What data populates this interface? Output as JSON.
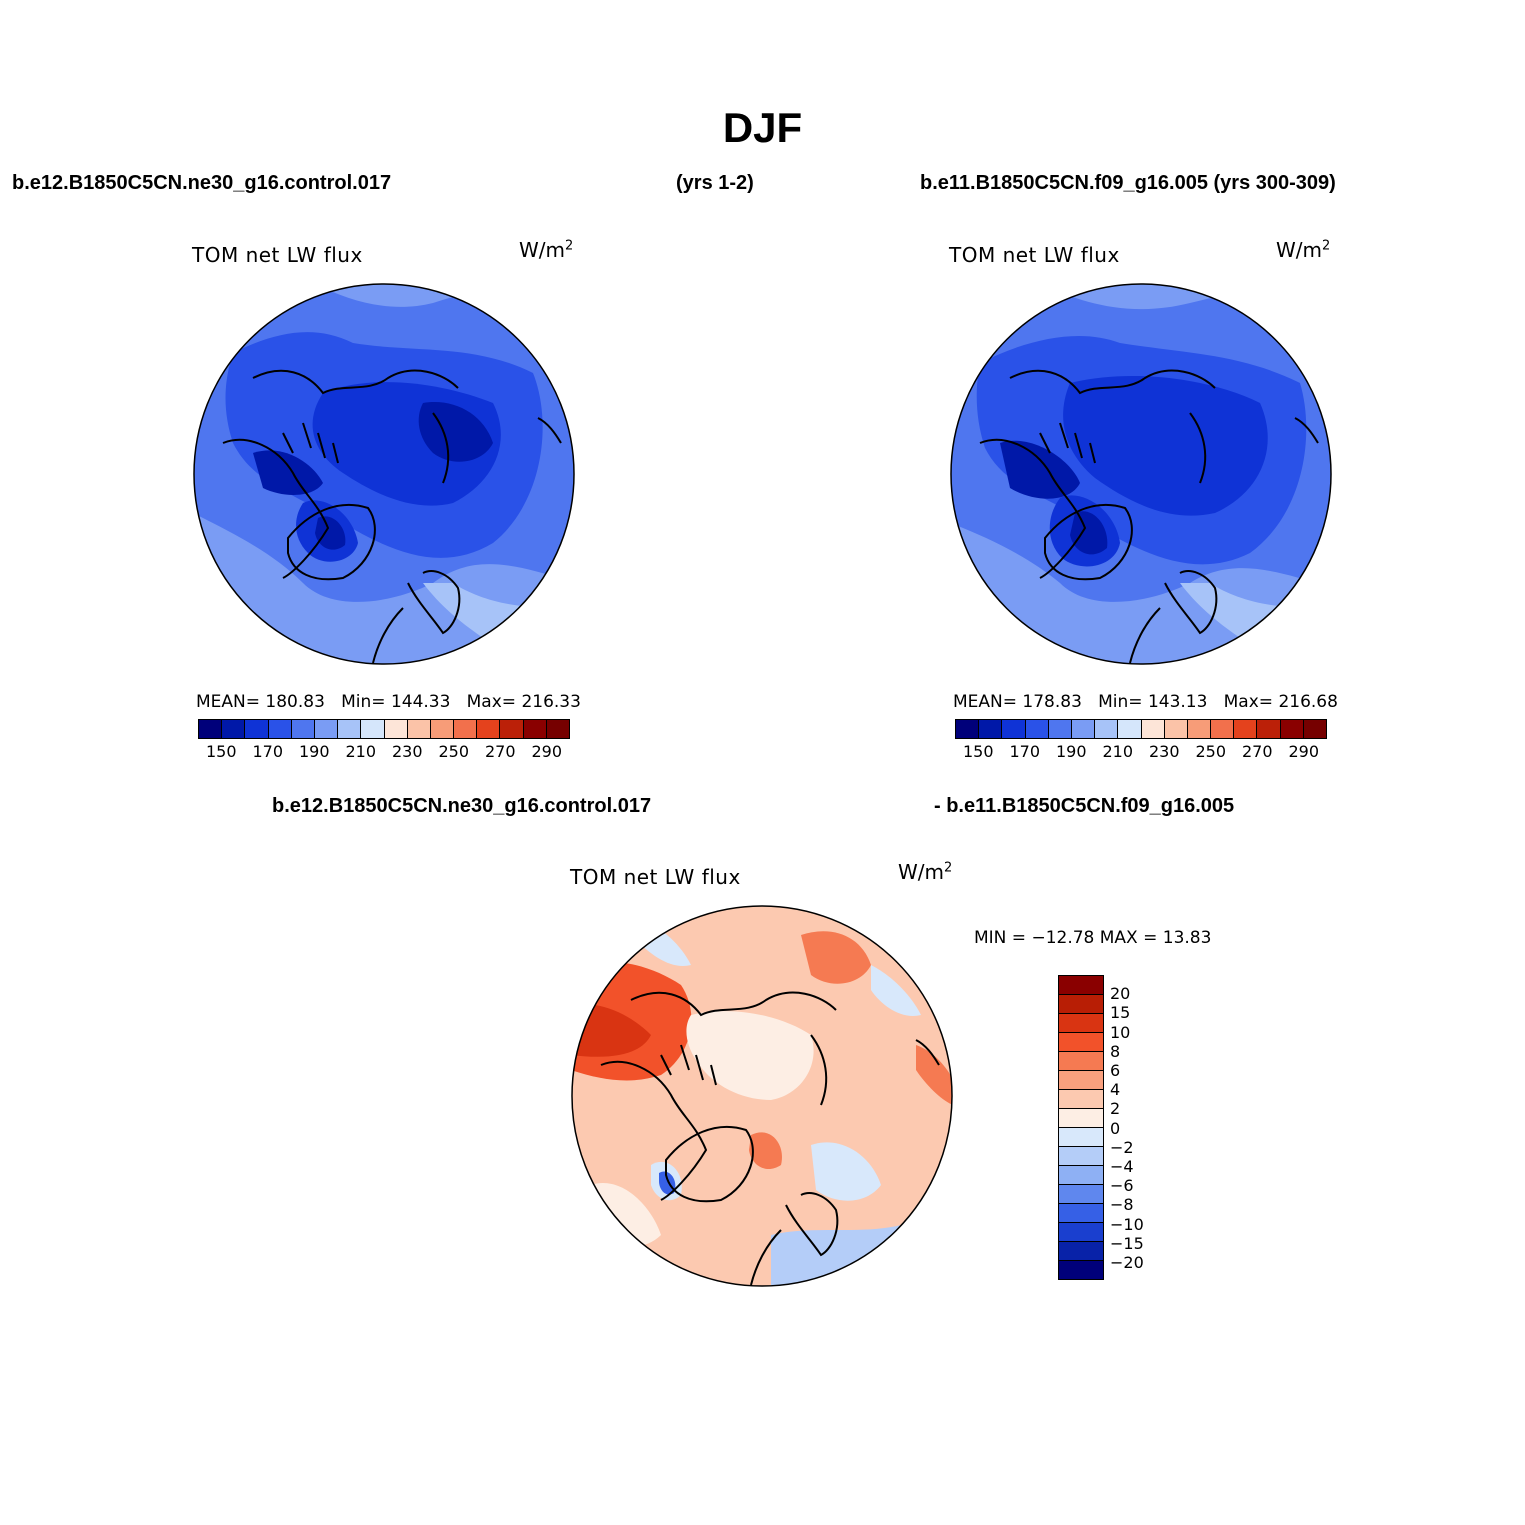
{
  "figure": {
    "title": "DJF",
    "header_left": "b.e12.B1850C5CN.ne30_g16.control.017",
    "header_mid": "(yrs 1-2)",
    "header_right": "b.e11.B1850C5CN.f09_g16.005 (yrs 300-309)",
    "diff_header_left": "b.e12.B1850C5CN.ne30_g16.control.017",
    "diff_header_right": "- b.e11.B1850C5CN.f09_g16.005"
  },
  "chart_data": [
    {
      "type": "heatmap",
      "projection": "north polar stereographic",
      "title": "TOM net LW flux",
      "units_base": "W/m",
      "units_exp": "2",
      "stats": {
        "mean_label": "MEAN=",
        "mean": "180.83",
        "min_label": "Min=",
        "min": "144.33",
        "max_label": "Max=",
        "max": "216.33"
      },
      "levels": [
        150,
        160,
        170,
        180,
        190,
        200,
        210,
        220,
        230,
        240,
        250,
        260,
        270,
        280,
        290
      ],
      "tick_labels": [
        "150",
        "170",
        "190",
        "210",
        "230",
        "250",
        "270",
        "290"
      ],
      "colors": [
        "#00007a",
        "#0018a8",
        "#0f33d6",
        "#2a52e8",
        "#4f76ef",
        "#7a9cf4",
        "#a7c3f8",
        "#d5e6fb",
        "#fde5d8",
        "#fbc3a8",
        "#f79c78",
        "#f2704c",
        "#e4421d",
        "#bb2008",
        "#8a0000",
        "#760000"
      ],
      "legend": "bottom"
    },
    {
      "type": "heatmap",
      "projection": "north polar stereographic",
      "title": "TOM net LW flux",
      "units_base": "W/m",
      "units_exp": "2",
      "stats": {
        "mean_label": "MEAN=",
        "mean": "178.83",
        "min_label": "Min=",
        "min": "143.13",
        "max_label": "Max=",
        "max": "216.68"
      },
      "levels": [
        150,
        160,
        170,
        180,
        190,
        200,
        210,
        220,
        230,
        240,
        250,
        260,
        270,
        280,
        290
      ],
      "tick_labels": [
        "150",
        "170",
        "190",
        "210",
        "230",
        "250",
        "270",
        "290"
      ],
      "colors": [
        "#00007a",
        "#0018a8",
        "#0f33d6",
        "#2a52e8",
        "#4f76ef",
        "#7a9cf4",
        "#a7c3f8",
        "#d5e6fb",
        "#fde5d8",
        "#fbc3a8",
        "#f79c78",
        "#f2704c",
        "#e4421d",
        "#bb2008",
        "#8a0000",
        "#760000"
      ],
      "legend": "bottom"
    },
    {
      "type": "heatmap",
      "projection": "north polar stereographic",
      "title": "TOM net LW flux",
      "units_base": "W/m",
      "units_exp": "2",
      "stats_text": "MIN = −12.78 MAX =  13.83",
      "levels": [
        20,
        15,
        10,
        8,
        6,
        4,
        2,
        0,
        -2,
        -4,
        -6,
        -8,
        -10,
        -15,
        -20
      ],
      "tick_labels": [
        "20",
        "15",
        "10",
        "8",
        "6",
        "4",
        "2",
        "0",
        "−2",
        "−4",
        "−6",
        "−8",
        "−10",
        "−15",
        "−20"
      ],
      "colors": [
        "#8a0000",
        "#b81e05",
        "#d93412",
        "#f2522a",
        "#f57a52",
        "#f9a07e",
        "#fcc9b0",
        "#fdeee4",
        "#d8e8fb",
        "#b4cdf8",
        "#8eb0f4",
        "#5f87ee",
        "#3660e6",
        "#1a3fcf",
        "#0822a8",
        "#00007a"
      ],
      "legend": "right"
    }
  ]
}
